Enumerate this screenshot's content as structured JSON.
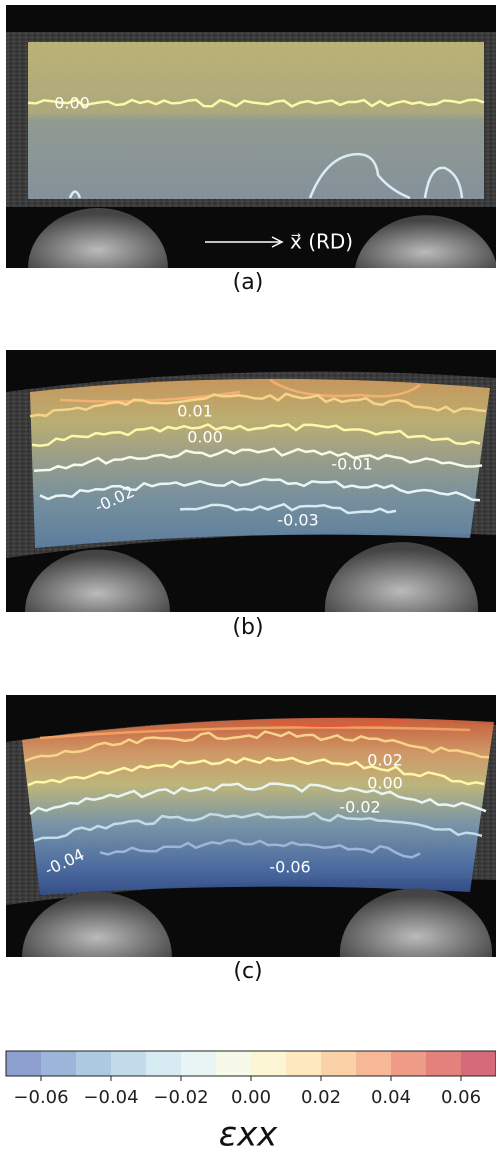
{
  "chart_data": {
    "type": "contour",
    "annotation": "x⃗ (RD)",
    "panels": [
      {
        "label": "(a)",
        "values": [
          0
        ],
        "value_labels": [
          "0.00"
        ]
      },
      {
        "label": "(b)",
        "values": [
          0.01,
          0,
          -0.01,
          -0.02,
          -0.03
        ],
        "value_labels": [
          "0.01",
          "0.00",
          "-0.01",
          "-0.02",
          "-0.03"
        ]
      },
      {
        "label": "(c)",
        "values": [
          0.02,
          0,
          -0.02,
          -0.04,
          -0.06
        ],
        "value_labels": [
          "0.02",
          "0.00",
          "-0.02",
          "-0.04",
          "-0.06"
        ]
      }
    ],
    "colorbar": {
      "label": "εxx",
      "clim": [
        -0.07,
        0.07
      ],
      "ticks": [
        {
          "value": -0.06,
          "label": "−0.06"
        },
        {
          "value": -0.04,
          "label": "−0.04"
        },
        {
          "value": -0.02,
          "label": "−0.02"
        },
        {
          "value": 0,
          "label": "0.00"
        },
        0.02,
        0.04,
        0.06
      ],
      "colors": [
        "#8c9fcf",
        "#9db5d8",
        "#aecae1",
        "#c3dceb",
        "#d7ebf2",
        "#e9f5f5",
        "#f7f9e9",
        "#fdf6d5",
        "#fde8bf",
        "#fbd2a8",
        "#f6b896",
        "#ee9c88",
        "#e4817d",
        "#d56a78"
      ]
    }
  }
}
